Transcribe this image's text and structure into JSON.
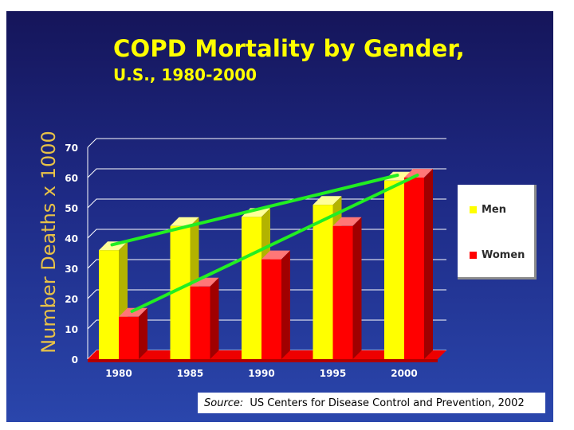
{
  "title": "COPD Mortality by Gender,",
  "subtitle": "U.S., 1980-2000",
  "source": {
    "label": "Source:",
    "text": "US Centers for Disease Control and Prevention, 2002"
  },
  "colors": {
    "men": "#ffff00",
    "women": "#ff0000",
    "trend": "#22ee22",
    "axis_text": "#ffffff",
    "ylabel": "#e8c247"
  },
  "chart_data": {
    "type": "bar",
    "title": "COPD Mortality by Gender, U.S., 1980-2000",
    "xlabel": "",
    "ylabel": "Number Deaths x 1000",
    "categories": [
      "1980",
      "1985",
      "1990",
      "1995",
      "2000"
    ],
    "series": [
      {
        "name": "Men",
        "values": [
          36,
          44,
          47,
          51,
          59
        ]
      },
      {
        "name": "Women",
        "values": [
          14,
          24,
          33,
          44,
          60
        ]
      }
    ],
    "trend_lines": [
      {
        "name": "Men trend",
        "from": [
          "1980",
          37
        ],
        "to": [
          "2000",
          60
        ]
      },
      {
        "name": "Women trend",
        "from": [
          "1980",
          15
        ],
        "to": [
          "2000",
          60
        ]
      }
    ],
    "ylim": [
      0,
      70
    ],
    "yticks": [
      0,
      10,
      20,
      30,
      40,
      50,
      60,
      70
    ],
    "grid": true,
    "legend_position": "right"
  }
}
